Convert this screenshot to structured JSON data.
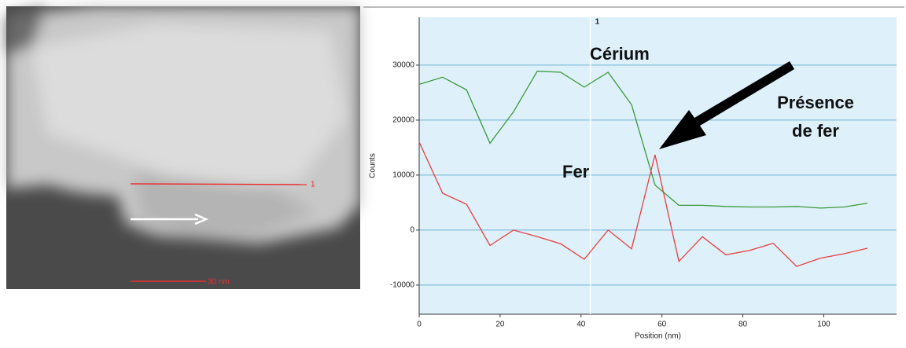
{
  "image": {
    "line_label": "1",
    "scale_label": "30 nm"
  },
  "chart_data": {
    "type": "line",
    "x_label": "Position (nm)",
    "y_label": "Counts",
    "xlim": [
      0,
      118
    ],
    "xticks": [
      0,
      20,
      40,
      60,
      80,
      100
    ],
    "ylim": [
      -15300,
      38700
    ],
    "yticks": [
      -10000,
      0,
      10000,
      20000,
      30000
    ],
    "grid": true,
    "marker": {
      "x": 42.3,
      "label": "1"
    },
    "annotation": [
      "Présence",
      "de fer"
    ],
    "x": [
      0,
      5.8,
      11.7,
      17.5,
      23.3,
      29.2,
      35,
      40.8,
      46.7,
      52.5,
      58.3,
      64.2,
      70,
      75.8,
      81.7,
      87.5,
      93.3,
      99.2,
      105,
      110.8
    ],
    "series": [
      {
        "name": "Cérium",
        "color": "#3a9a3a",
        "values": [
          26500,
          27800,
          25500,
          15800,
          21500,
          28900,
          28700,
          26000,
          28700,
          22800,
          8200,
          4500,
          4500,
          4300,
          4200,
          4200,
          4300,
          4000,
          4200,
          4900
        ]
      },
      {
        "name": "Fer",
        "color": "#e84040",
        "values": [
          16000,
          6700,
          4700,
          -2800,
          0,
          -1200,
          -2500,
          -5300,
          0,
          -3400,
          13700,
          -5700,
          -1200,
          -4500,
          -3700,
          -2400,
          -6600,
          -5100,
          -4300,
          -3300
        ]
      }
    ]
  }
}
